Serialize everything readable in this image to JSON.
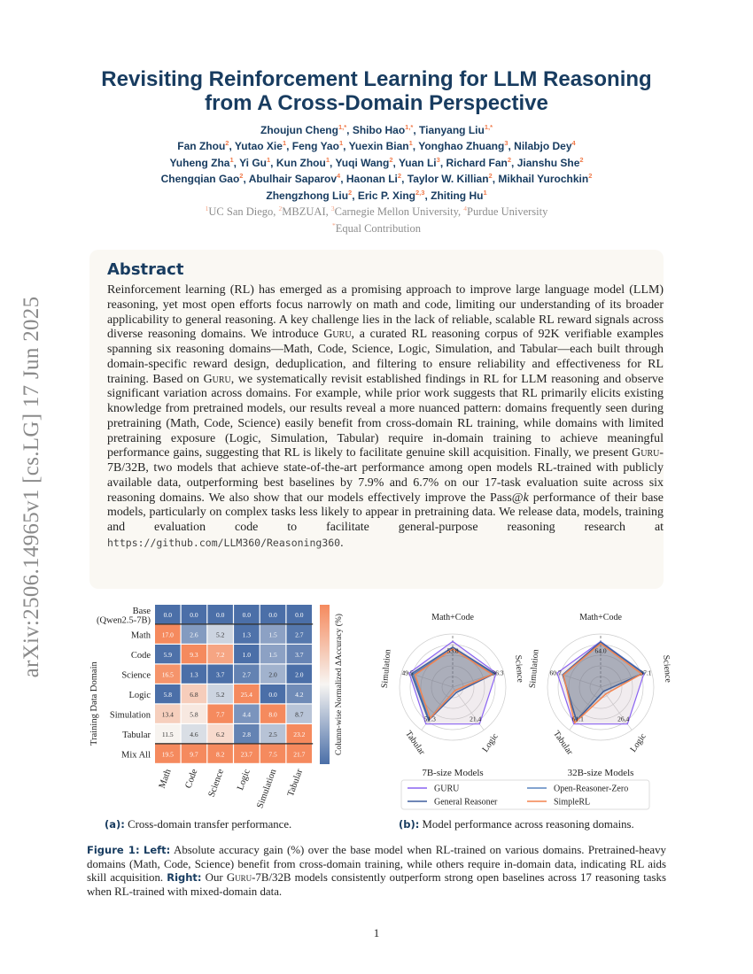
{
  "arxiv_stamp": "arXiv:2506.14965v1  [cs.LG]  17 Jun 2025",
  "title_line1": "Revisiting Reinforcement Learning for LLM Reasoning",
  "title_line2": "from A Cross-Domain Perspective",
  "authors": [
    [
      {
        "name": "Zhoujun Cheng",
        "sup": "1,*"
      },
      {
        "name": "Shibo Hao",
        "sup": "1,*"
      },
      {
        "name": "Tianyang Liu",
        "sup": "1,*"
      }
    ],
    [
      {
        "name": "Fan Zhou",
        "sup": "2"
      },
      {
        "name": "Yutao Xie",
        "sup": "1"
      },
      {
        "name": "Feng Yao",
        "sup": "1"
      },
      {
        "name": "Yuexin Bian",
        "sup": "1"
      },
      {
        "name": "Yonghao Zhuang",
        "sup": "3"
      },
      {
        "name": "Nilabjo Dey",
        "sup": "4"
      }
    ],
    [
      {
        "name": "Yuheng Zha",
        "sup": "1"
      },
      {
        "name": "Yi Gu",
        "sup": "1"
      },
      {
        "name": "Kun Zhou",
        "sup": "1"
      },
      {
        "name": "Yuqi Wang",
        "sup": "2"
      },
      {
        "name": "Yuan Li",
        "sup": "3"
      },
      {
        "name": "Richard Fan",
        "sup": "2"
      },
      {
        "name": "Jianshu She",
        "sup": "2"
      }
    ],
    [
      {
        "name": "Chengqian Gao",
        "sup": "2"
      },
      {
        "name": "Abulhair Saparov",
        "sup": "4"
      },
      {
        "name": "Haonan Li",
        "sup": "2"
      },
      {
        "name": "Taylor W. Killian",
        "sup": "2"
      },
      {
        "name": "Mikhail Yurochkin",
        "sup": "2"
      }
    ],
    [
      {
        "name": "Zhengzhong Liu",
        "sup": "2"
      },
      {
        "name": "Eric P. Xing",
        "sup": "2,3"
      },
      {
        "name": "Zhiting Hu",
        "sup": "1"
      }
    ]
  ],
  "affiliations": [
    {
      "sup": "1",
      "name": "UC San Diego"
    },
    {
      "sup": "2",
      "name": "MBZUAI"
    },
    {
      "sup": "3",
      "name": "Carnegie Mellon University"
    },
    {
      "sup": "4",
      "name": "Purdue University"
    }
  ],
  "equal_contribution": {
    "sup": "*",
    "text": "Equal Contribution"
  },
  "abstract": {
    "heading": "Abstract",
    "parts": [
      {
        "t": "Reinforcement learning (RL) has emerged as a promising approach to improve large language model (LLM) reasoning, yet most open efforts focus narrowly on math and code, limiting our understanding of its broader applicability to general reasoning. A key challenge lies in the lack of reliable, scalable RL reward signals across diverse reasoning domains. We introduce "
      },
      {
        "t": "Guru",
        "s": "sc"
      },
      {
        "t": ", a curated RL reasoning corpus of 92K verifiable examples spanning six reasoning domains—Math, Code, Science, Logic, Simulation, and Tabular—each built through domain-specific reward design, deduplication, and filtering to ensure reliability and effectiveness for RL training. Based on "
      },
      {
        "t": "Guru",
        "s": "sc"
      },
      {
        "t": ", we systematically revisit established findings in RL for LLM reasoning and observe significant variation across domains. For example, while prior work suggests that RL primarily elicits existing knowledge from pretrained models, our results reveal a more nuanced pattern: domains frequently seen during pretraining (Math, Code, Science) easily benefit from cross-domain RL training, while domains with limited pretraining exposure (Logic, Simulation, Tabular) require in-domain training to achieve meaningful performance gains, suggesting that RL is likely to facilitate genuine skill acquisition. Finally, we present "
      },
      {
        "t": "Guru-7B/32B",
        "s": "sc"
      },
      {
        "t": ", two models that achieve state-of-the-art performance among open models RL-trained with publicly available data, outperforming best baselines by 7.9% and 6.7% on our 17-task evaluation suite across six reasoning domains. We also show that our models effectively improve the Pass@"
      },
      {
        "t": "k",
        "s": "em"
      },
      {
        "t": " performance of their base models, particularly on complex tasks less likely to appear in pretraining data. We release data, models, training and evaluation code to facilitate general-purpose reasoning research at "
      },
      {
        "t": "https://github.com/LLM360/Reasoning360",
        "s": "code"
      },
      {
        "t": "."
      }
    ]
  },
  "heatmap": {
    "type": "heatmap",
    "ylabel": "Training Data Domain",
    "colorbar_label": "Column-wise Normalized ΔAccuracy (%)",
    "columns": [
      "Math",
      "Code",
      "Science",
      "Logic",
      "Simulation",
      "Tabular"
    ],
    "rows": [
      "Base\n(Qwen2.5-7B)",
      "Math",
      "Code",
      "Science",
      "Logic",
      "Simulation",
      "Tabular",
      "Mix All"
    ],
    "values": [
      [
        0.0,
        0.0,
        0.0,
        0.0,
        0.0,
        0.0
      ],
      [
        17.0,
        2.6,
        5.2,
        1.3,
        1.5,
        2.7
      ],
      [
        5.9,
        9.3,
        7.2,
        1.0,
        1.5,
        3.7
      ],
      [
        16.5,
        1.3,
        3.7,
        2.7,
        2.0,
        2.0
      ],
      [
        5.8,
        6.8,
        5.2,
        25.4,
        0.0,
        4.2
      ],
      [
        13.4,
        5.8,
        7.7,
        4.4,
        8.0,
        8.7
      ],
      [
        11.5,
        4.6,
        6.2,
        2.8,
        2.5,
        23.2
      ],
      [
        19.5,
        9.7,
        8.2,
        23.7,
        7.5,
        21.7
      ]
    ],
    "colors": {
      "low": "#4b6fa8",
      "mid": "#f7f5f2",
      "high": "#f58a5e"
    }
  },
  "radar": {
    "type": "radar",
    "axes": [
      "Math+Code",
      "Science",
      "Logic",
      "Tabular",
      "Simulation"
    ],
    "legend": [
      {
        "name": "GURU",
        "color": "#8a63f2"
      },
      {
        "name": "General Reasoner",
        "color": "#3f5f9e"
      },
      {
        "name": "Open-Reasoner-Zero",
        "color": "#5a86c0"
      },
      {
        "name": "SimpleRL",
        "color": "#f4844f"
      }
    ],
    "charts": [
      {
        "title": "7B-size Models",
        "series": {
          "GURU": [
            53.8,
            36.3,
            21.4,
            51.3,
            49.5
          ],
          "General Reasoner": [
            47,
            35,
            3,
            46,
            47
          ],
          "Open-Reasoner-Zero": [
            45,
            34,
            2,
            45,
            45
          ],
          "SimpleRL": [
            45,
            33,
            2,
            43,
            43
          ]
        }
      },
      {
        "title": "32B-size Models",
        "series": {
          "GURU": [
            64.0,
            37.1,
            26.4,
            61.1,
            60.7
          ],
          "General Reasoner": [
            63,
            36.5,
            3,
            55,
            53
          ],
          "Open-Reasoner-Zero": [
            63.5,
            37,
            3,
            55,
            53
          ],
          "SimpleRL": [
            61,
            35,
            5,
            59,
            52
          ]
        }
      }
    ]
  },
  "subcaption_a": {
    "label": "(a):",
    "text": " Cross-domain transfer performance."
  },
  "subcaption_b": {
    "label": "(b):",
    "text": " Model performance across reasoning domains."
  },
  "figure_caption": {
    "label": "Figure 1:",
    "left_label": "Left:",
    "left_text": " Absolute accuracy gain (%) over the base model when RL-trained on various domains. Pretrained-heavy domains (Math, Code, Science) benefit from cross-domain training, while others require in-domain data, indicating RL aids skill acquisition. ",
    "right_label": "Right:",
    "right_text_1": " Our ",
    "right_sc": "Guru-7B/32B",
    "right_text_2": " models consistently outperform strong open baselines across 17 reasoning tasks when RL-trained with mixed-domain data."
  },
  "page_number": "1"
}
